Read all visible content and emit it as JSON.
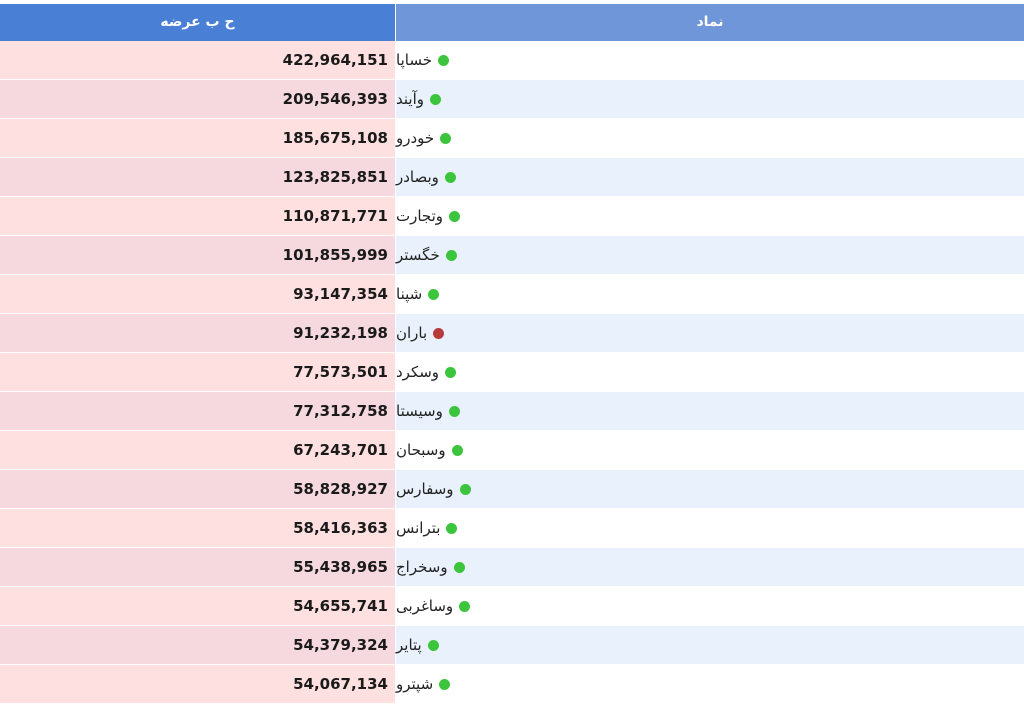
{
  "colors": {
    "header_value_bg": "#4a7fd6",
    "header_symbol_bg": "#6f96d8",
    "status_up": "#3cc43c",
    "status_down": "#b83a3a"
  },
  "table": {
    "headers": {
      "symbol": "نماد",
      "value": "ح ب عرضه"
    },
    "rows": [
      {
        "symbol": "خساپا",
        "value": "422,964,151",
        "status": "up"
      },
      {
        "symbol": "وآیند",
        "value": "209,546,393",
        "status": "up"
      },
      {
        "symbol": "خودرو",
        "value": "185,675,108",
        "status": "up"
      },
      {
        "symbol": "وبصادر",
        "value": "123,825,851",
        "status": "up"
      },
      {
        "symbol": "وتجارت",
        "value": "110,871,771",
        "status": "up"
      },
      {
        "symbol": "خگستر",
        "value": "101,855,999",
        "status": "up"
      },
      {
        "symbol": "شپنا",
        "value": "93,147,354",
        "status": "up"
      },
      {
        "symbol": "باران",
        "value": "91,232,198",
        "status": "down"
      },
      {
        "symbol": "وسکرد",
        "value": "77,573,501",
        "status": "up"
      },
      {
        "symbol": "وسیستا",
        "value": "77,312,758",
        "status": "up"
      },
      {
        "symbol": "وسبحان",
        "value": "67,243,701",
        "status": "up"
      },
      {
        "symbol": "وسفارس",
        "value": "58,828,927",
        "status": "up"
      },
      {
        "symbol": "بترانس",
        "value": "58,416,363",
        "status": "up"
      },
      {
        "symbol": "وسخراج",
        "value": "55,438,965",
        "status": "up"
      },
      {
        "symbol": "وساغربی",
        "value": "54,655,741",
        "status": "up"
      },
      {
        "symbol": "پتایر",
        "value": "54,379,324",
        "status": "up"
      },
      {
        "symbol": "شپترو",
        "value": "54,067,134",
        "status": "up"
      }
    ]
  }
}
